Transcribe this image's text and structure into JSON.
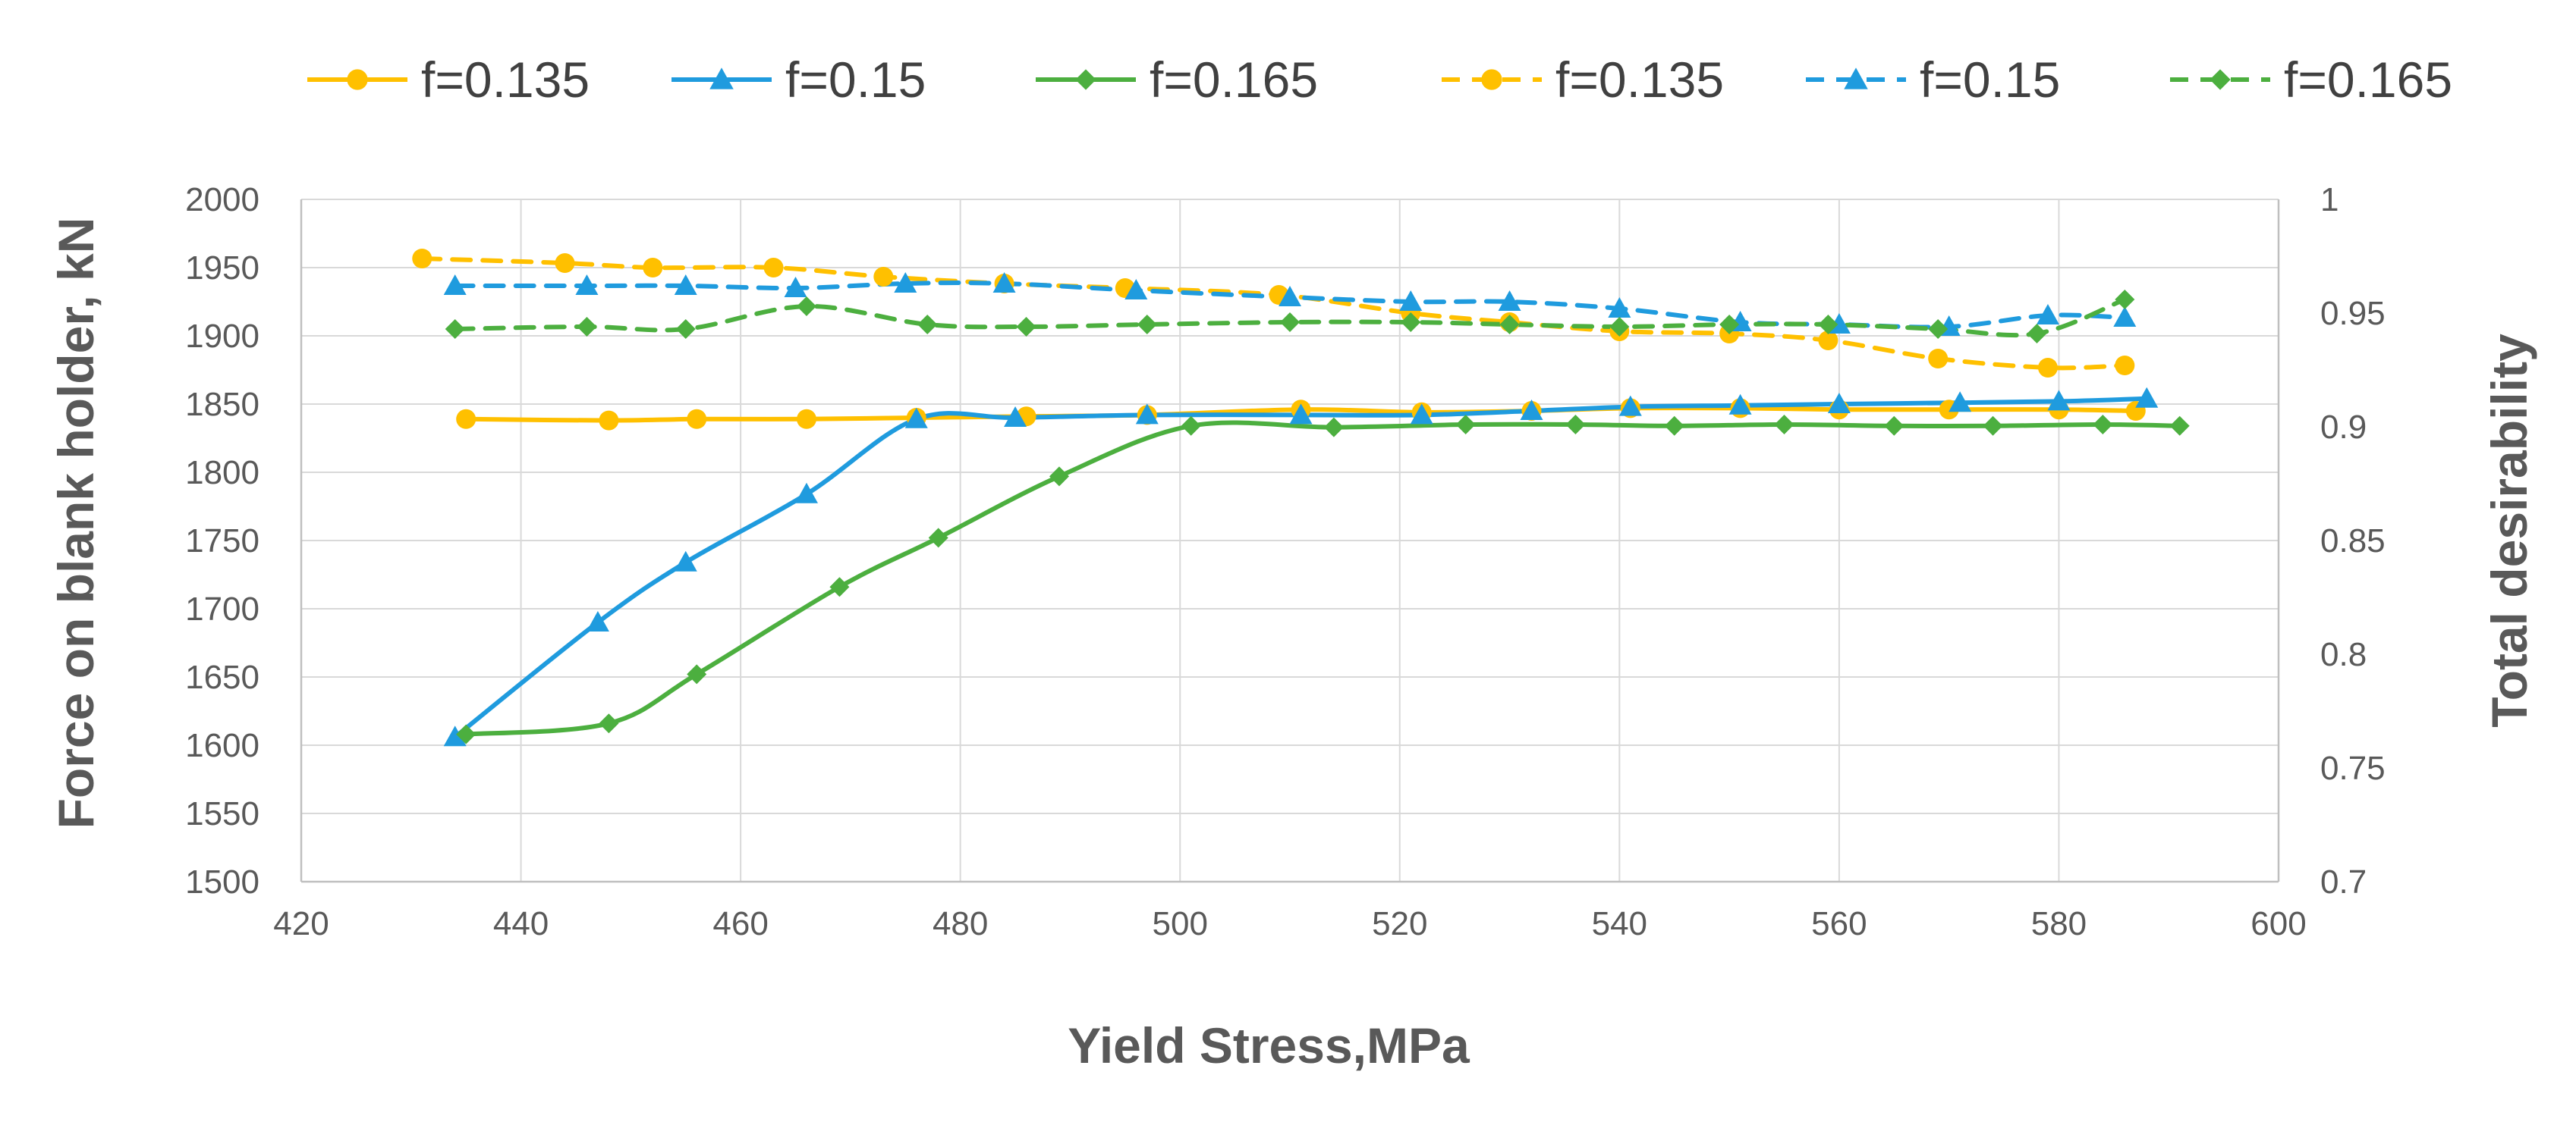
{
  "colors": {
    "f0135": "#FFC000",
    "f015": "#1F9BDE",
    "f0165": "#4CAF3F",
    "grid": "#D9D9D9",
    "axis_text": "#595959"
  },
  "chart_data": {
    "type": "line",
    "title": "",
    "xlabel": "Yield Stress,MPa",
    "ylabel": "Force on blank holder, kN",
    "y2label": "Total desirability",
    "xlim": [
      420,
      600
    ],
    "ylim": [
      1500,
      2000
    ],
    "y2lim": [
      0.7,
      1.0
    ],
    "grid": true,
    "legend_position": "top",
    "x_ticks": [
      "420",
      "440",
      "460",
      "480",
      "500",
      "520",
      "540",
      "560",
      "580",
      "600"
    ],
    "y_ticks": [
      "1500",
      "1550",
      "1600",
      "1650",
      "1700",
      "1750",
      "1800",
      "1850",
      "1900",
      "1950",
      "2000"
    ],
    "y2_ticks": [
      "0.7",
      "0.75",
      "0.8",
      "0.85",
      "0.9",
      "0.95",
      "1"
    ],
    "series": [
      {
        "name": "f=0.135",
        "axis": "primary",
        "style": "solid",
        "marker": "circle",
        "color_key": "f0135",
        "x": [
          435,
          448,
          456,
          466,
          476,
          486,
          497,
          511,
          522,
          532,
          541,
          551,
          560,
          570,
          580,
          587
        ],
        "values": [
          1839,
          1838,
          1839,
          1839,
          1840,
          1841,
          1842,
          1846,
          1844,
          1845,
          1847,
          1847,
          1846,
          1846,
          1846,
          1845
        ]
      },
      {
        "name": "f=0.15",
        "axis": "primary",
        "style": "solid",
        "marker": "triangle",
        "color_key": "f015",
        "x": [
          434,
          447,
          455,
          466,
          476,
          485,
          497,
          511,
          522,
          532,
          541,
          551,
          560,
          571,
          580,
          588
        ],
        "values": [
          1606,
          1690,
          1734,
          1784,
          1839,
          1840,
          1842,
          1842,
          1842,
          1845,
          1848,
          1849,
          1850,
          1851,
          1852,
          1854
        ]
      },
      {
        "name": "f=0.165",
        "axis": "primary",
        "style": "solid",
        "marker": "diamond",
        "color_key": "f0165",
        "x": [
          435,
          448,
          456,
          469,
          478,
          489,
          501,
          514,
          526,
          536,
          545,
          555,
          565,
          574,
          584,
          591
        ],
        "values": [
          1608,
          1616,
          1652,
          1716,
          1752,
          1797,
          1834,
          1833,
          1835,
          1835,
          1834,
          1835,
          1834,
          1834,
          1835,
          1834
        ]
      },
      {
        "name": "f=0.135",
        "axis": "secondary",
        "style": "dashed",
        "marker": "circle",
        "color_key": "f0135",
        "x": [
          431,
          444,
          452,
          463,
          473,
          484,
          495,
          509,
          521,
          530,
          540,
          550,
          559,
          569,
          579,
          586
        ],
        "values": [
          0.974,
          0.972,
          0.97,
          0.97,
          0.966,
          0.963,
          0.961,
          0.958,
          0.95,
          0.946,
          0.942,
          0.941,
          0.938,
          0.93,
          0.926,
          0.927
        ]
      },
      {
        "name": "f=0.15",
        "axis": "secondary",
        "style": "dashed",
        "marker": "triangle",
        "color_key": "f015",
        "x": [
          434,
          446,
          455,
          465,
          475,
          484,
          496,
          510,
          521,
          530,
          540,
          551,
          560,
          570,
          579,
          586
        ],
        "values": [
          0.962,
          0.962,
          0.962,
          0.961,
          0.963,
          0.963,
          0.96,
          0.957,
          0.955,
          0.955,
          0.952,
          0.946,
          0.945,
          0.944,
          0.949,
          0.948
        ]
      },
      {
        "name": "f=0.165",
        "axis": "secondary",
        "style": "dashed",
        "marker": "diamond",
        "color_key": "f0165",
        "x": [
          434,
          446,
          455,
          466,
          477,
          486,
          497,
          510,
          521,
          530,
          540,
          550,
          559,
          569,
          578,
          586
        ],
        "values": [
          0.943,
          0.944,
          0.943,
          0.953,
          0.945,
          0.944,
          0.945,
          0.946,
          0.946,
          0.945,
          0.944,
          0.945,
          0.945,
          0.943,
          0.941,
          0.956
        ]
      }
    ]
  }
}
